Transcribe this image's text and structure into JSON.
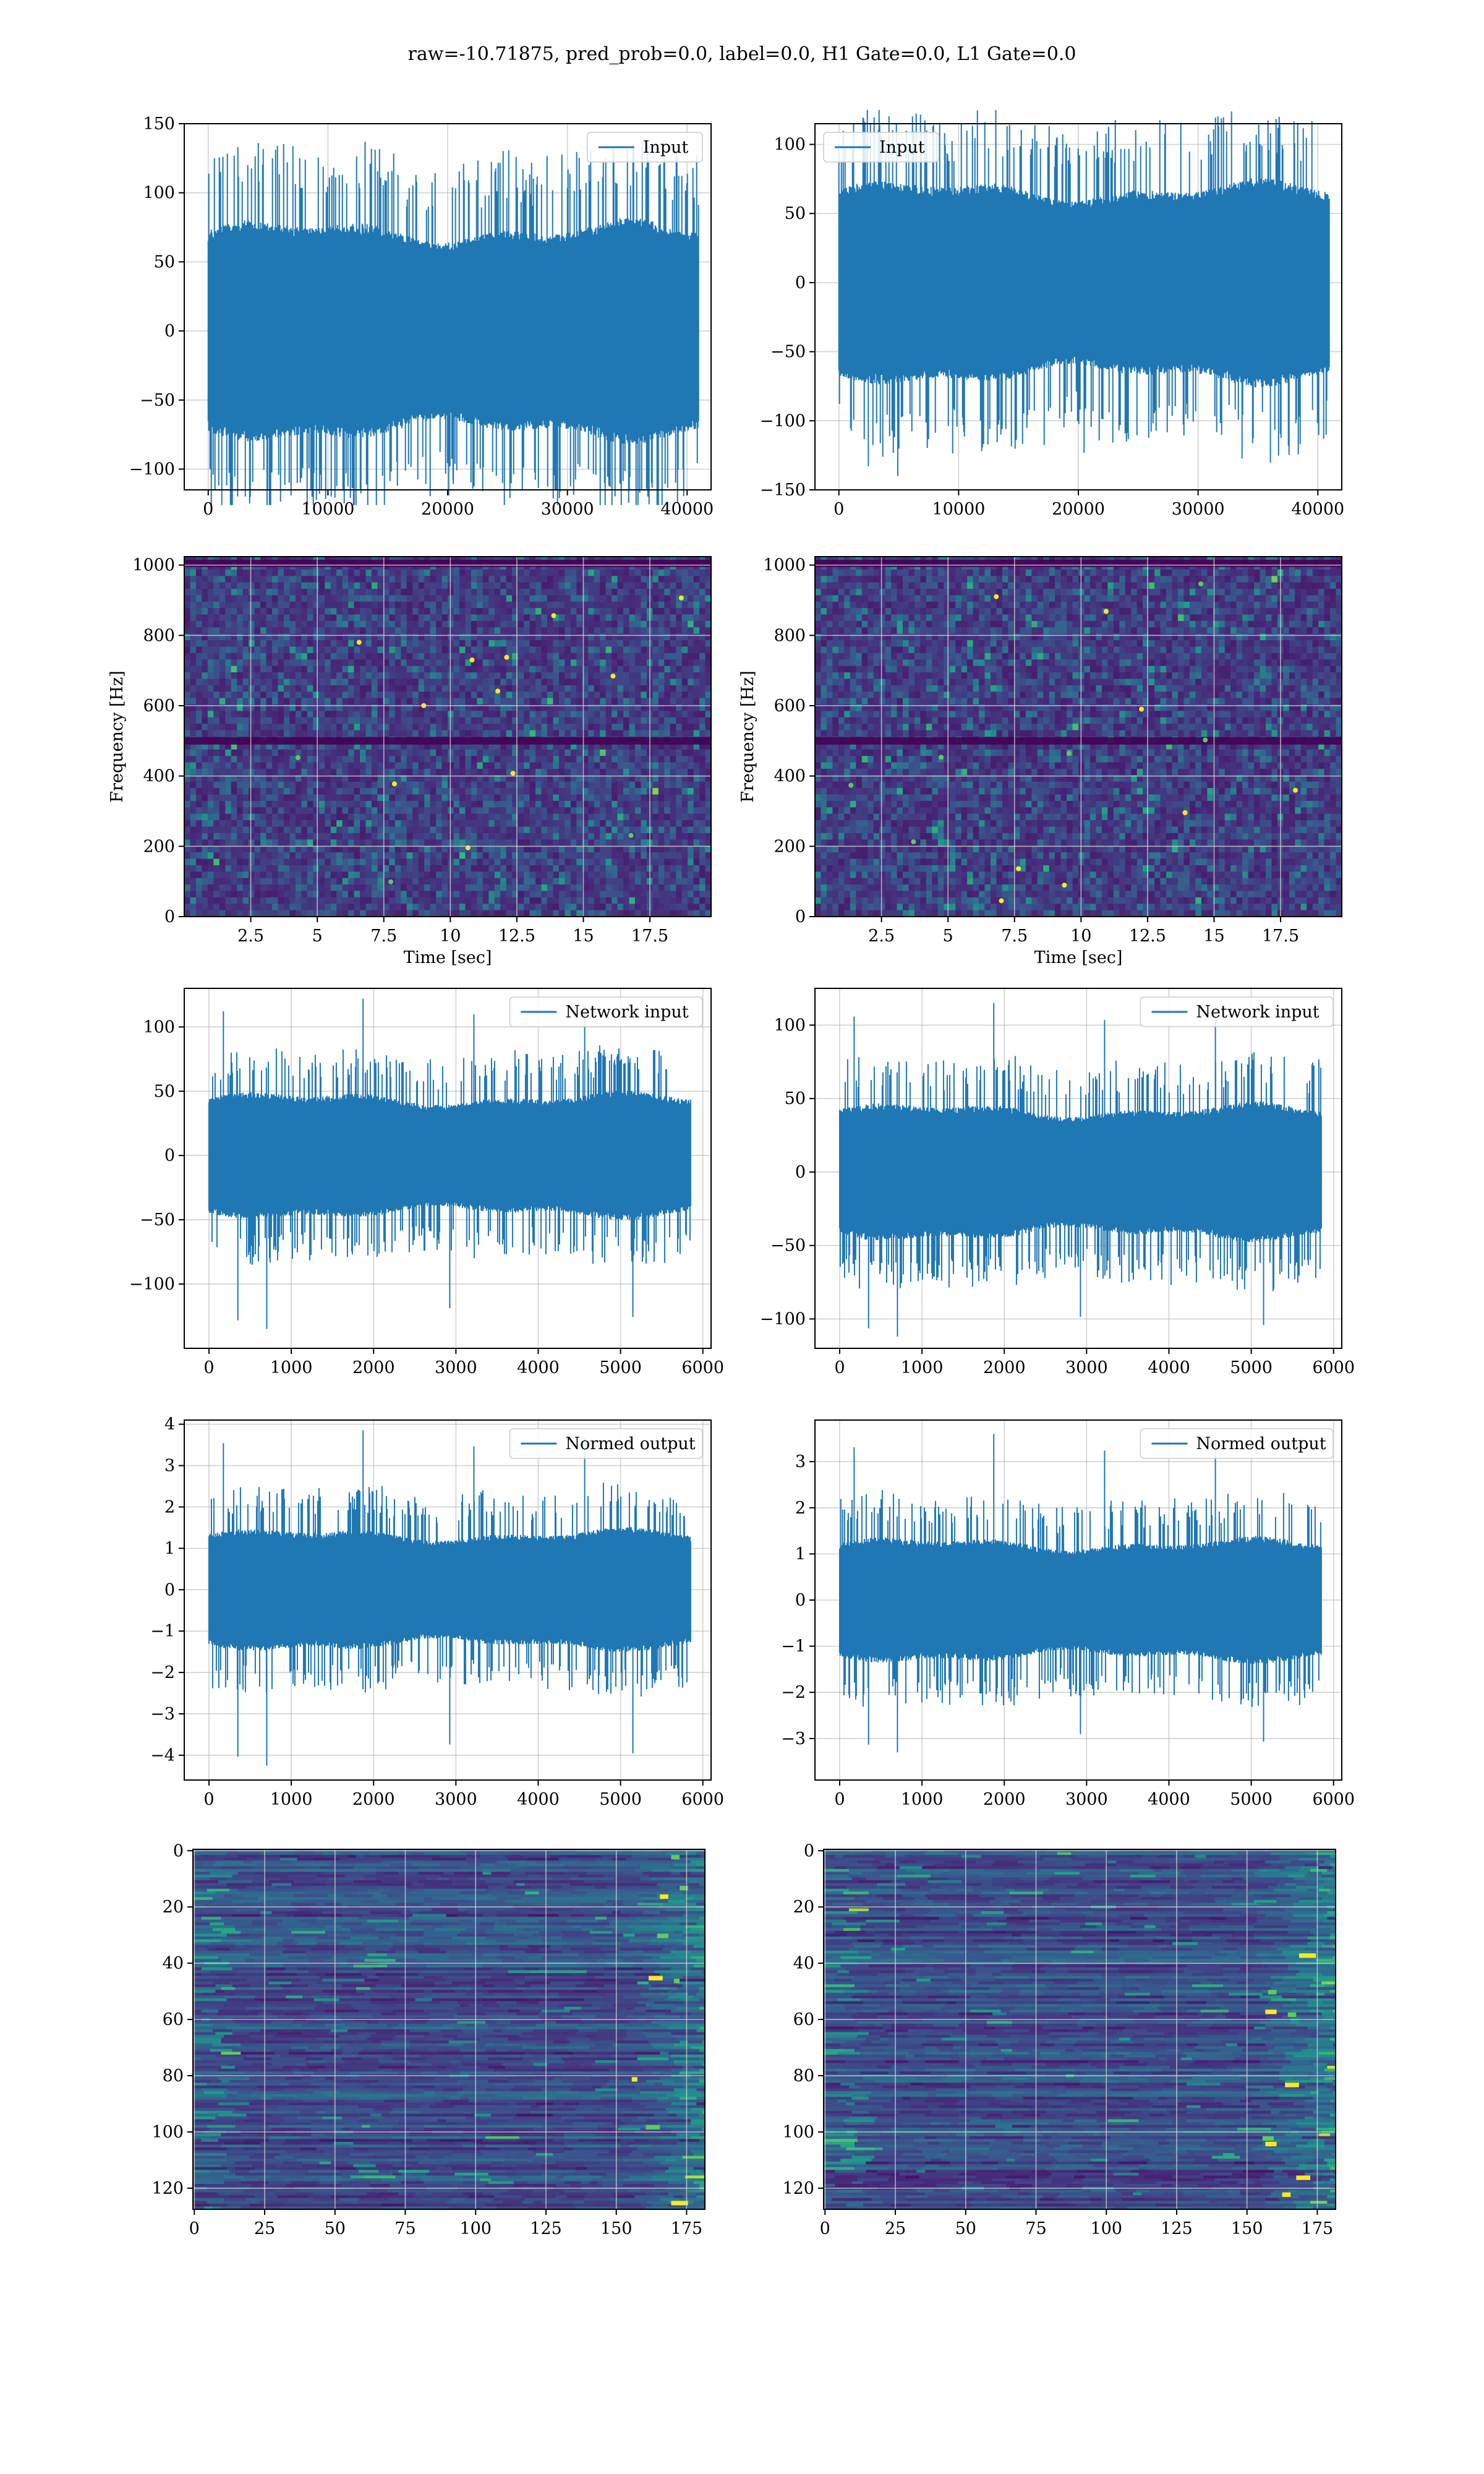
{
  "figure": {
    "suptitle": "raw=-10.71875, pred_prob=0.0, label=0.0, H1 Gate=0.0, L1 Gate=0.0"
  },
  "colors": {
    "line": "#1f77b4",
    "grid": "#b0b0b0",
    "viridis_dark": "#440154",
    "viridis_mid": "#3b528b",
    "viridis_teal": "#21918c",
    "viridis_green": "#5ec962",
    "viridis_yellow": "#fde725"
  },
  "chart_data": [
    {
      "id": "r1c1",
      "type": "line",
      "title": "",
      "xlabel": "",
      "ylabel": "",
      "legend": "Input",
      "legend_loc": "upper-right",
      "grid": true,
      "xlim": [
        -2000,
        42000
      ],
      "ylim": [
        -115,
        150
      ],
      "xticks": [
        0,
        10000,
        20000,
        30000,
        40000
      ],
      "yticks": [
        -100,
        -50,
        0,
        50,
        100,
        150
      ],
      "signal": {
        "n_samples": 40960,
        "core_amplitude": 65,
        "max": 137,
        "min": -126
      }
    },
    {
      "id": "r1c2",
      "type": "line",
      "title": "",
      "xlabel": "",
      "ylabel": "",
      "legend": "Input",
      "legend_loc": "upper-left",
      "grid": true,
      "xlim": [
        -2000,
        42000
      ],
      "ylim": [
        -150,
        115
      ],
      "xticks": [
        0,
        10000,
        20000,
        30000,
        40000
      ],
      "yticks": [
        -150,
        -100,
        -50,
        0,
        50,
        100
      ],
      "signal": {
        "n_samples": 40960,
        "core_amplitude": 60,
        "max": 125,
        "min": -140
      }
    },
    {
      "id": "r2c1",
      "type": "heatmap",
      "title": "",
      "xlabel": "Time [sec]",
      "ylabel": "Frequency [Hz]",
      "grid": true,
      "colormap": "viridis",
      "xlim": [
        0,
        19.8
      ],
      "ylim": [
        0,
        1024
      ],
      "xticks": [
        2.5,
        5.0,
        7.5,
        10.0,
        12.5,
        15.0,
        17.5
      ],
      "yticks": [
        0,
        200,
        400,
        600,
        800,
        1000
      ],
      "dark_bands_hz": [
        500,
        1005
      ]
    },
    {
      "id": "r2c2",
      "type": "heatmap",
      "title": "",
      "xlabel": "Time [sec]",
      "ylabel": "Frequency [Hz]",
      "grid": true,
      "colormap": "viridis",
      "xlim": [
        0,
        19.8
      ],
      "ylim": [
        0,
        1024
      ],
      "xticks": [
        2.5,
        5.0,
        7.5,
        10.0,
        12.5,
        15.0,
        17.5
      ],
      "yticks": [
        0,
        200,
        400,
        600,
        800,
        1000
      ],
      "dark_bands_hz": [
        500,
        1005
      ]
    },
    {
      "id": "r3c1",
      "type": "line",
      "title": "",
      "xlabel": "",
      "ylabel": "",
      "legend": "Network input",
      "legend_loc": "upper-right",
      "grid": true,
      "xlim": [
        -300,
        6100
      ],
      "ylim": [
        -150,
        130
      ],
      "xticks": [
        0,
        1000,
        2000,
        3000,
        4000,
        5000,
        6000
      ],
      "yticks": [
        -100,
        -50,
        0,
        50,
        100
      ],
      "signal": {
        "n_samples": 5855,
        "core_amplitude": 40,
        "max": 122,
        "min": -135
      }
    },
    {
      "id": "r3c2",
      "type": "line",
      "title": "",
      "xlabel": "",
      "ylabel": "",
      "legend": "Network input",
      "legend_loc": "upper-right",
      "grid": true,
      "xlim": [
        -300,
        6100
      ],
      "ylim": [
        -120,
        125
      ],
      "xticks": [
        0,
        1000,
        2000,
        3000,
        4000,
        5000,
        6000
      ],
      "yticks": [
        -100,
        -50,
        0,
        50,
        100
      ],
      "signal": {
        "n_samples": 5855,
        "core_amplitude": 38,
        "max": 115,
        "min": -112
      }
    },
    {
      "id": "r4c1",
      "type": "line",
      "title": "",
      "xlabel": "",
      "ylabel": "",
      "legend": "Normed output",
      "legend_loc": "upper-right",
      "grid": true,
      "xlim": [
        -300,
        6100
      ],
      "ylim": [
        -4.6,
        4.1
      ],
      "xticks": [
        0,
        1000,
        2000,
        3000,
        4000,
        5000,
        6000
      ],
      "yticks": [
        -4,
        -3,
        -2,
        -1,
        0,
        1,
        2,
        3,
        4
      ],
      "signal": {
        "n_samples": 5855,
        "core_amplitude": 1.2,
        "max": 3.85,
        "min": -4.25
      }
    },
    {
      "id": "r4c2",
      "type": "line",
      "title": "",
      "xlabel": "",
      "ylabel": "",
      "legend": "Normed output",
      "legend_loc": "upper-right",
      "grid": true,
      "xlim": [
        -300,
        6100
      ],
      "ylim": [
        -3.9,
        3.9
      ],
      "xticks": [
        0,
        1000,
        2000,
        3000,
        4000,
        5000,
        6000
      ],
      "yticks": [
        -3,
        -2,
        -1,
        0,
        1,
        2,
        3
      ],
      "signal": {
        "n_samples": 5855,
        "core_amplitude": 1.1,
        "max": 3.6,
        "min": -3.3
      }
    },
    {
      "id": "r5c1",
      "type": "heatmap",
      "title": "",
      "xlabel": "",
      "ylabel": "",
      "grid": true,
      "colormap": "viridis",
      "xlim": [
        -0.5,
        181.5
      ],
      "ylim_inverted": [
        127.5,
        -0.5
      ],
      "xticks": [
        0,
        25,
        50,
        75,
        100,
        125,
        150,
        175
      ],
      "yticks": [
        0,
        20,
        40,
        60,
        80,
        100,
        120
      ],
      "rows": 128,
      "cols": 182
    },
    {
      "id": "r5c2",
      "type": "heatmap",
      "title": "",
      "xlabel": "",
      "ylabel": "",
      "grid": true,
      "colormap": "viridis",
      "xlim": [
        -0.5,
        181.5
      ],
      "ylim_inverted": [
        127.5,
        -0.5
      ],
      "xticks": [
        0,
        25,
        50,
        75,
        100,
        125,
        150,
        175
      ],
      "yticks": [
        0,
        20,
        40,
        60,
        80,
        100,
        120
      ],
      "rows": 128,
      "cols": 182
    }
  ]
}
